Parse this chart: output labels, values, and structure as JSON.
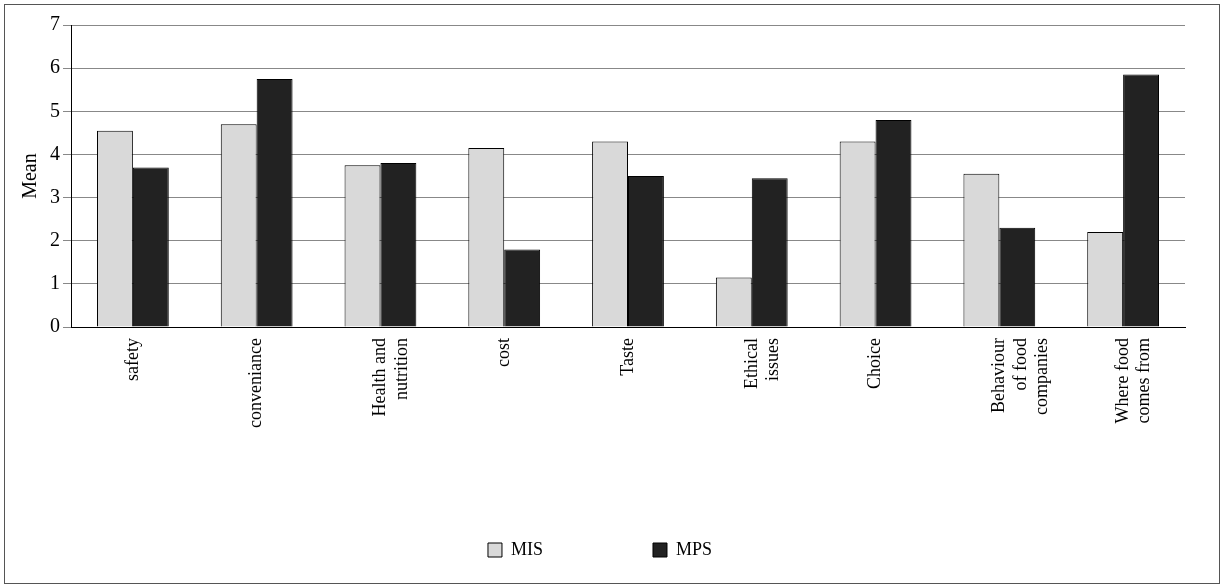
{
  "chart_data": {
    "type": "bar",
    "ylabel": "Mean",
    "categories": [
      "safety",
      "conveniance",
      "Health and nutrition",
      "cost",
      "Taste",
      "Ethical issues",
      "Choice",
      "Behaviour of food companies",
      "Where food comes from"
    ],
    "series": [
      {
        "name": "MIS",
        "color": "#d9d9d9",
        "values": [
          4.55,
          4.7,
          3.75,
          4.15,
          4.3,
          1.15,
          4.3,
          3.55,
          2.2
        ]
      },
      {
        "name": "MPS",
        "color": "#222222",
        "values": [
          3.7,
          5.75,
          3.8,
          1.8,
          3.5,
          3.45,
          4.8,
          2.3,
          5.85
        ]
      }
    ],
    "ylim": [
      0,
      7
    ],
    "yticks": [
      0,
      1,
      2,
      3,
      4,
      5,
      6,
      7
    ],
    "grid": "y",
    "legend": "bottom"
  }
}
